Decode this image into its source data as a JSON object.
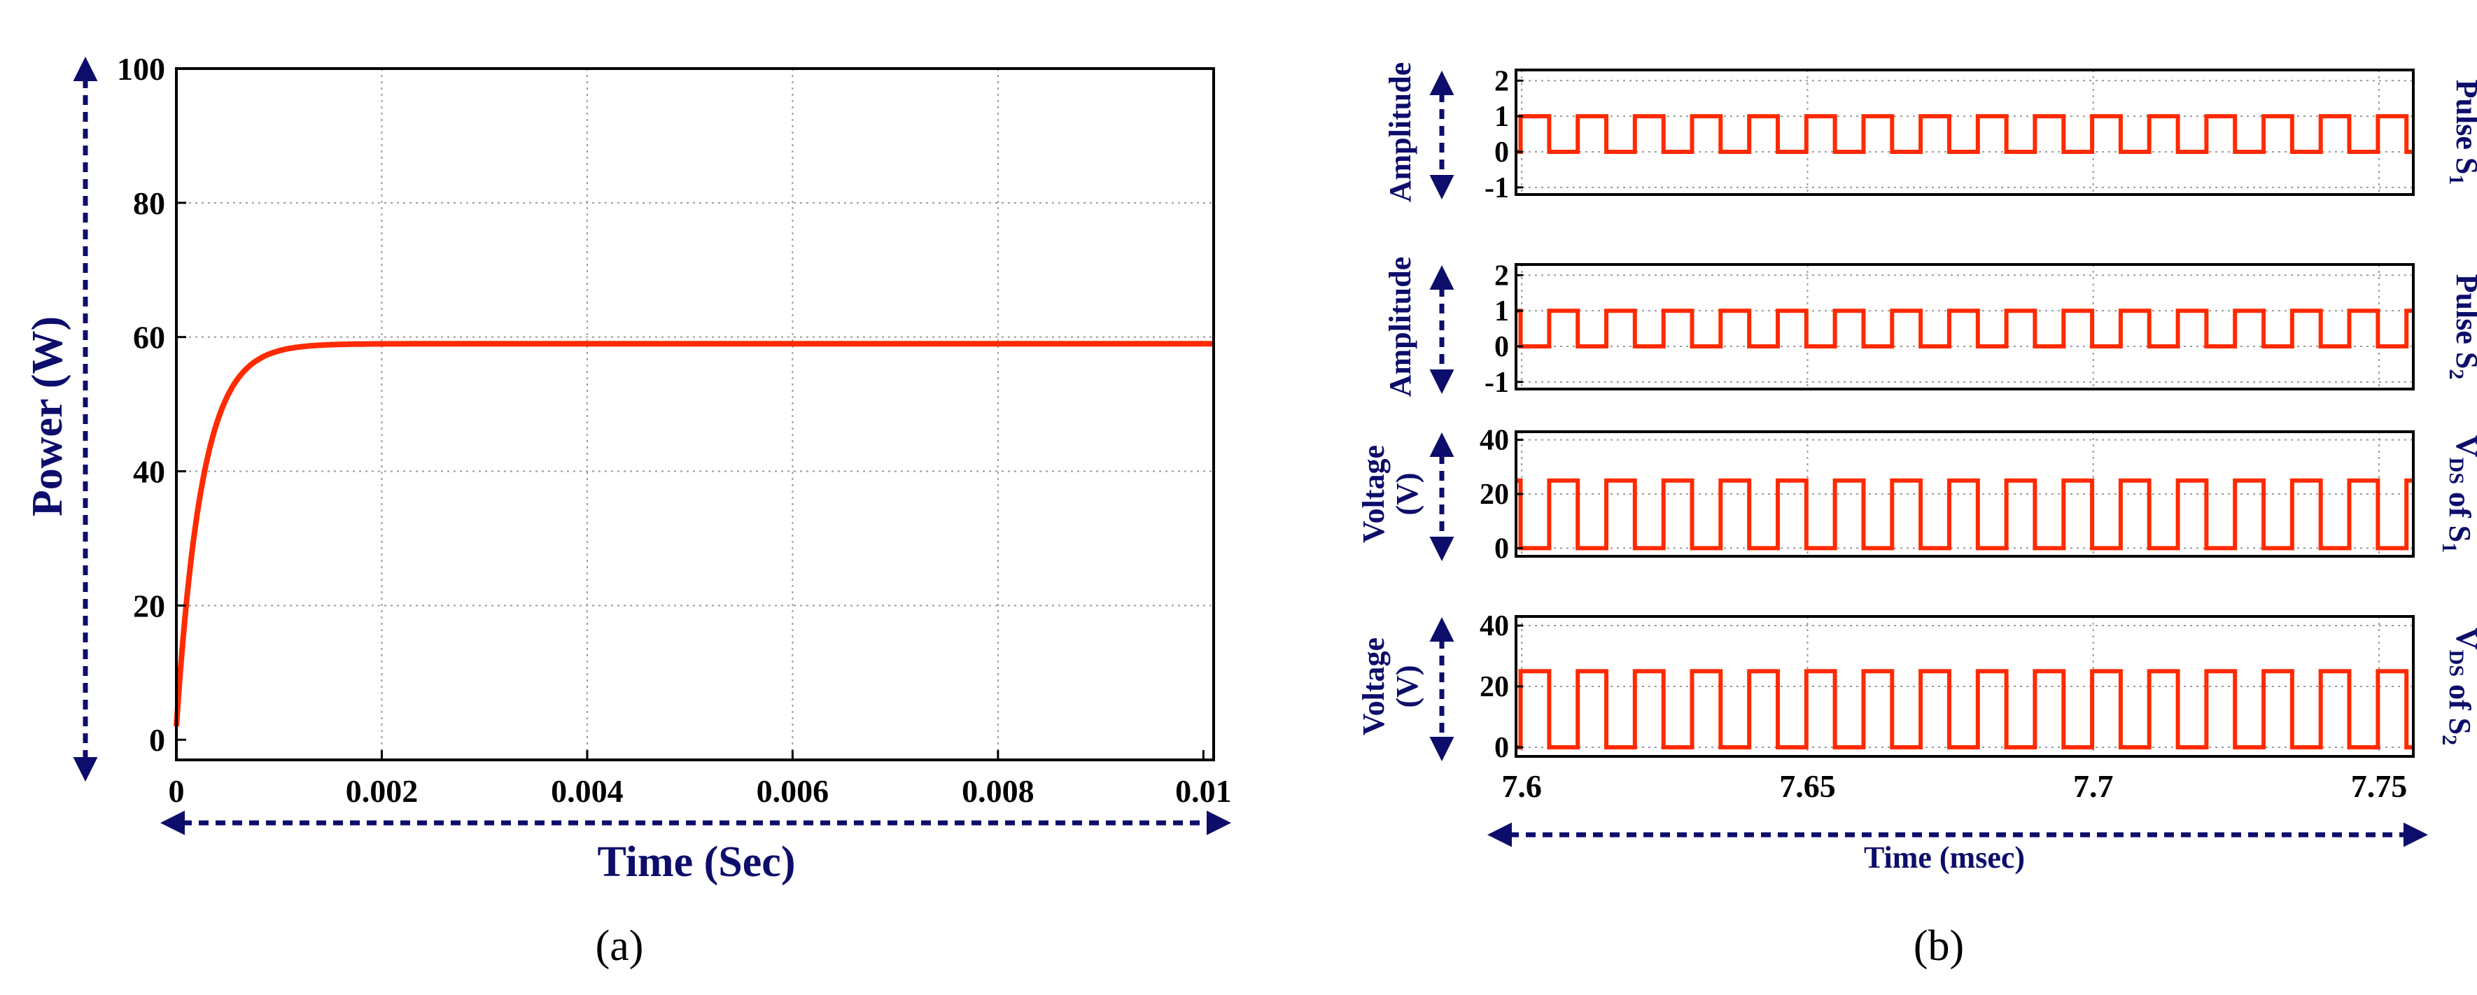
{
  "colors": {
    "trace": "#ff2a00",
    "axis_title": "#0d0d6b",
    "arrow": "#0d0d6b",
    "grid": "#9a9a9a",
    "frame": "#000000"
  },
  "panels": {
    "a": "(a)",
    "b": "(b)"
  },
  "chart_data": [
    {
      "id": "a",
      "type": "line",
      "title": "",
      "xlabel": "Time (Sec)",
      "ylabel": "Power (W)",
      "xlim": [
        0,
        0.0101
      ],
      "ylim": [
        -3,
        100
      ],
      "xticks": [
        0,
        0.002,
        0.004,
        0.006,
        0.008,
        0.01
      ],
      "xtick_labels": [
        "0",
        "0.002",
        "0.004",
        "0.006",
        "0.008",
        "0.01"
      ],
      "yticks": [
        0,
        20,
        40,
        60,
        80,
        100
      ],
      "ytick_labels": [
        "0",
        "20",
        "40",
        "60",
        "80",
        "100"
      ],
      "grid": true,
      "series": [
        {
          "name": "Power",
          "model": "first-order rise",
          "final_value": 59,
          "time_constant": 0.00025,
          "x": [
            0,
            0.0001,
            0.0002,
            0.0003,
            0.0004,
            0.0005,
            0.0006,
            0.0008,
            0.001,
            0.0012,
            0.0015,
            0.002,
            0.004,
            0.006,
            0.008,
            0.0101
          ],
          "values": [
            2,
            18,
            32,
            41,
            47,
            51,
            54,
            57,
            58.3,
            58.8,
            59,
            59,
            59,
            59,
            59,
            59
          ]
        }
      ]
    },
    {
      "id": "b1",
      "type": "line",
      "xlabel": "",
      "ylabel": "Amplitude",
      "right_label": "Pulse S1",
      "xlim": [
        7.599,
        7.756
      ],
      "ylim": [
        -1.2,
        2.3
      ],
      "yticks": [
        -1,
        0,
        1,
        2
      ],
      "ytick_labels": [
        "-1",
        "0",
        "1",
        "2"
      ],
      "grid": true,
      "series": [
        {
          "name": "Pulse S1",
          "waveform": "square",
          "low": 0,
          "high": 1,
          "period_msec": 0.01,
          "duty": 0.5,
          "start_high_msec": 7.5998
        }
      ]
    },
    {
      "id": "b2",
      "type": "line",
      "xlabel": "",
      "ylabel": "Amplitude",
      "right_label": "Pulse S2",
      "xlim": [
        7.599,
        7.756
      ],
      "ylim": [
        -1.2,
        2.3
      ],
      "yticks": [
        -1,
        0,
        1,
        2
      ],
      "ytick_labels": [
        "-1",
        "0",
        "1",
        "2"
      ],
      "grid": true,
      "series": [
        {
          "name": "Pulse S2",
          "waveform": "square",
          "low": 0,
          "high": 1,
          "period_msec": 0.01,
          "duty": 0.5,
          "start_high_msec": 7.6048
        }
      ]
    },
    {
      "id": "b3",
      "type": "line",
      "xlabel": "",
      "ylabel": "Voltage (V)",
      "ylabel_lines": [
        "Voltage",
        "(V)"
      ],
      "right_label": "VDS of S1",
      "xlim": [
        7.599,
        7.756
      ],
      "ylim": [
        -3,
        43
      ],
      "yticks": [
        0,
        20,
        40
      ],
      "ytick_labels": [
        "0",
        "20",
        "40"
      ],
      "grid": true,
      "series": [
        {
          "name": "VDS of S1",
          "waveform": "square",
          "low": 0,
          "high": 25,
          "period_msec": 0.01,
          "duty": 0.5,
          "start_high_msec": 7.6048
        }
      ]
    },
    {
      "id": "b4",
      "type": "line",
      "xlabel": "Time (msec)",
      "ylabel": "Voltage (V)",
      "ylabel_lines": [
        "Voltage",
        "(V)"
      ],
      "right_label": "VDS of S2",
      "xlim": [
        7.599,
        7.756
      ],
      "ylim": [
        -3,
        43
      ],
      "xticks": [
        7.6,
        7.65,
        7.7,
        7.75
      ],
      "xtick_labels": [
        "7.6",
        "7.65",
        "7.7",
        "7.75"
      ],
      "yticks": [
        0,
        20,
        40
      ],
      "ytick_labels": [
        "0",
        "20",
        "40"
      ],
      "grid": true,
      "series": [
        {
          "name": "VDS of S2",
          "waveform": "square",
          "low": 0,
          "high": 25,
          "period_msec": 0.01,
          "duty": 0.5,
          "start_high_msec": 7.5998
        }
      ]
    }
  ]
}
